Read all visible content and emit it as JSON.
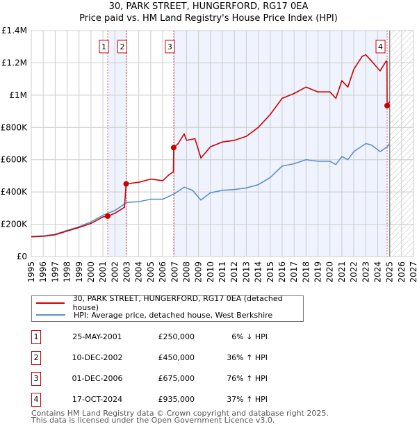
{
  "title": "30, PARK STREET, HUNGERFORD, RG17 0EA",
  "subtitle": "Price paid vs. HM Land Registry's House Price Index (HPI)",
  "colors": {
    "property": "#cc0000",
    "hpi": "#5b8fd0",
    "shade": "#eef3fd",
    "grid": "#cccccc"
  },
  "chart_data": {
    "type": "line",
    "xlim": [
      1995,
      2027
    ],
    "ylim": [
      0,
      1400000
    ],
    "yticks": [
      0,
      200000,
      400000,
      600000,
      800000,
      1000000,
      1200000,
      1400000
    ],
    "ytick_labels": [
      "£0",
      "£200K",
      "£400K",
      "£600K",
      "£800K",
      "£1M",
      "£1.2M",
      "£1.4M"
    ],
    "xticks": [
      "1995",
      "1996",
      "1997",
      "1998",
      "1999",
      "2000",
      "2001",
      "2002",
      "2003",
      "2004",
      "2005",
      "2006",
      "2007",
      "2008",
      "2009",
      "2010",
      "2011",
      "2012",
      "2013",
      "2014",
      "2015",
      "2016",
      "2017",
      "2018",
      "2019",
      "2020",
      "2021",
      "2022",
      "2023",
      "2024",
      "2025",
      "2026",
      "2027"
    ],
    "grid": true,
    "forecast_from": 2025.0,
    "series": [
      {
        "name": "30, PARK STREET, HUNGERFORD, RG17 0EA (detached house)",
        "color": "#cc0000",
        "x": [
          1995,
          1996,
          1997,
          1998,
          1999,
          2000,
          2001,
          2001.4,
          2002,
          2002.8,
          2002.94,
          2004,
          2005,
          2006,
          2006.5,
          2006.9,
          2006.92,
          2007.3,
          2007.8,
          2008,
          2008.7,
          2009.2,
          2010,
          2011,
          2012,
          2013,
          2014,
          2015,
          2016,
          2017,
          2018,
          2019,
          2020,
          2020.5,
          2021,
          2021.5,
          2022,
          2022.7,
          2023,
          2023.5,
          2024.2,
          2024.7,
          2024.78,
          2024.79,
          2025
        ],
        "y": [
          122000,
          125000,
          135000,
          158000,
          180000,
          205000,
          245000,
          250000,
          268000,
          305000,
          450000,
          460000,
          480000,
          470000,
          505000,
          525000,
          675000,
          700000,
          760000,
          720000,
          730000,
          610000,
          680000,
          710000,
          720000,
          745000,
          800000,
          880000,
          980000,
          1010000,
          1050000,
          1020000,
          1020000,
          980000,
          1090000,
          1050000,
          1160000,
          1240000,
          1250000,
          1210000,
          1150000,
          1210000,
          1210000,
          935000,
          960000
        ]
      },
      {
        "name": "HPI: Average price, detached house, West Berkshire",
        "color": "#5b8fd0",
        "x": [
          1995,
          1996,
          1997,
          1998,
          1999,
          2000,
          2001,
          2002,
          2003,
          2004,
          2005,
          2006,
          2007,
          2007.8,
          2008.5,
          2009.2,
          2010,
          2011,
          2012,
          2013,
          2014,
          2015,
          2016,
          2017,
          2018,
          2019,
          2020,
          2020.5,
          2021,
          2021.5,
          2022,
          2023,
          2023.5,
          2024.2,
          2024.8,
          2025
        ],
        "y": [
          125000,
          128000,
          138000,
          162000,
          185000,
          215000,
          255000,
          285000,
          335000,
          340000,
          355000,
          355000,
          390000,
          430000,
          410000,
          350000,
          395000,
          410000,
          415000,
          425000,
          445000,
          490000,
          560000,
          575000,
          600000,
          590000,
          590000,
          570000,
          620000,
          600000,
          650000,
          700000,
          690000,
          650000,
          680000,
          700000
        ]
      }
    ],
    "sales": [
      {
        "label": "1",
        "x": 2001.4,
        "y": 250000
      },
      {
        "label": "2",
        "x": 2002.94,
        "y": 450000
      },
      {
        "label": "3",
        "x": 2006.92,
        "y": 675000
      },
      {
        "label": "4",
        "x": 2024.79,
        "y": 935000
      }
    ]
  },
  "legend": {
    "property": "30, PARK STREET, HUNGERFORD, RG17 0EA (detached house)",
    "hpi": "HPI: Average price, detached house, West Berkshire"
  },
  "transactions": [
    {
      "num": "1",
      "date": "25-MAY-2001",
      "price": "£250,000",
      "hpi": "6% ↓ HPI"
    },
    {
      "num": "2",
      "date": "10-DEC-2002",
      "price": "£450,000",
      "hpi": "36% ↑ HPI"
    },
    {
      "num": "3",
      "date": "01-DEC-2006",
      "price": "£675,000",
      "hpi": "76% ↑ HPI"
    },
    {
      "num": "4",
      "date": "17-OCT-2024",
      "price": "£935,000",
      "hpi": "37% ↑ HPI"
    }
  ],
  "footer": {
    "line1": "Contains HM Land Registry data © Crown copyright and database right 2025.",
    "line2": "This data is licensed under the Open Government Licence v3.0."
  }
}
